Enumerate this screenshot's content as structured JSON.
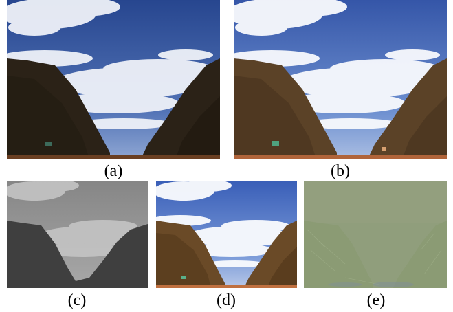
{
  "figure": {
    "panels": [
      {
        "id": "a",
        "caption": "(a)",
        "kind": "low-light-input"
      },
      {
        "id": "b",
        "caption": "(b)",
        "kind": "enhanced-result"
      },
      {
        "id": "c",
        "caption": "(c)",
        "kind": "illumination-map-grayscale"
      },
      {
        "id": "d",
        "caption": "(d)",
        "kind": "reflectance-color"
      },
      {
        "id": "e",
        "caption": "(e)",
        "kind": "residual-noise"
      }
    ]
  },
  "colors": {
    "sky_top": "#2f4fa0",
    "sky_bottom": "#7f9ed6",
    "cloud": "#f4f6fb",
    "rock_dark": "#2a2116",
    "rock_bright": "#5a4124",
    "ground": "#b0643a",
    "gray_sky": "#8c8c8c",
    "gray_rock": "#3f3f3f",
    "noise_base": "#8e9c78"
  }
}
